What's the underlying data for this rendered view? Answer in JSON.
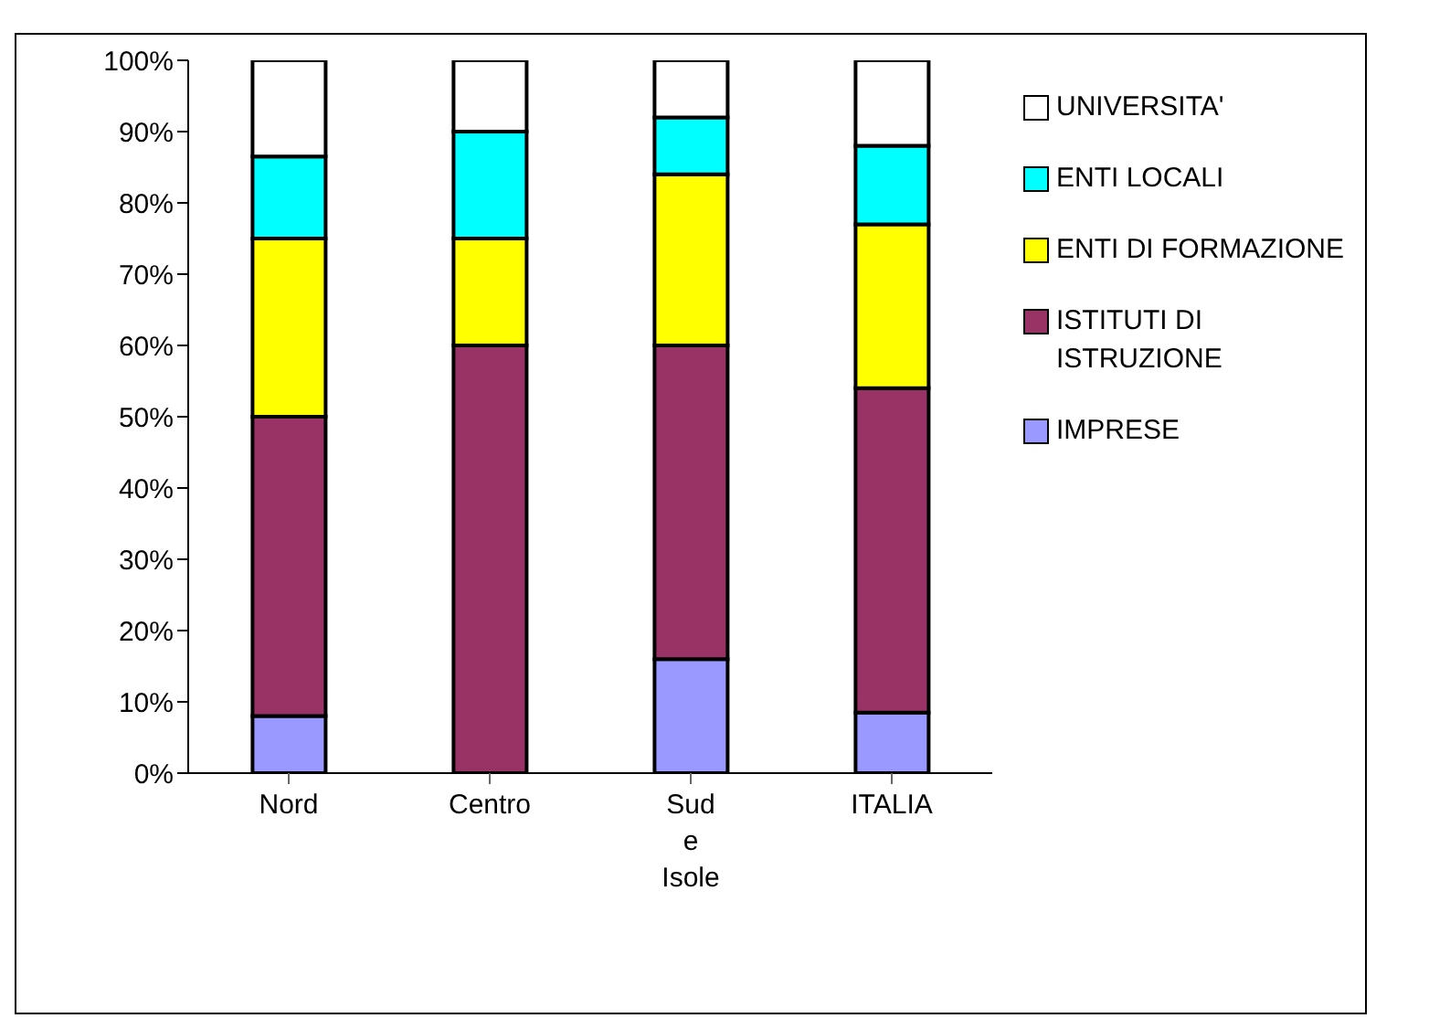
{
  "chart_data": {
    "type": "bar",
    "stacked": true,
    "categories": [
      "Nord",
      "Centro",
      "Sud e Isole",
      "ITALIA"
    ],
    "series": [
      {
        "name": "IMPRESE",
        "color": "#9999ff",
        "values": [
          8,
          0,
          16,
          8.5
        ]
      },
      {
        "name": "ISTITUTI DI ISTRUZIONE",
        "color": "#993366",
        "values": [
          42,
          60,
          44,
          45.5
        ]
      },
      {
        "name": "ENTI DI FORMAZIONE",
        "color": "#ffff00",
        "values": [
          25,
          15,
          24,
          23
        ]
      },
      {
        "name": "ENTI  LOCALI",
        "color": "#00ffff",
        "values": [
          11.5,
          15,
          8,
          11
        ]
      },
      {
        "name": "UNIVERSITA'",
        "color": "#ffffff",
        "values": [
          13.5,
          10,
          8,
          12
        ]
      }
    ],
    "ylim": [
      0,
      100
    ],
    "yticks": [
      {
        "value": 0,
        "label": "0%"
      },
      {
        "value": 10,
        "label": "10%"
      },
      {
        "value": 20,
        "label": "20%"
      },
      {
        "value": 30,
        "label": "30%"
      },
      {
        "value": 40,
        "label": "40%"
      },
      {
        "value": 50,
        "label": "50%"
      },
      {
        "value": 60,
        "label": "60%"
      },
      {
        "value": 70,
        "label": "70%"
      },
      {
        "value": 80,
        "label": "80%"
      },
      {
        "value": 90,
        "label": "90%"
      },
      {
        "value": 100,
        "label": "100%"
      }
    ],
    "grid": false,
    "legend": "right"
  }
}
